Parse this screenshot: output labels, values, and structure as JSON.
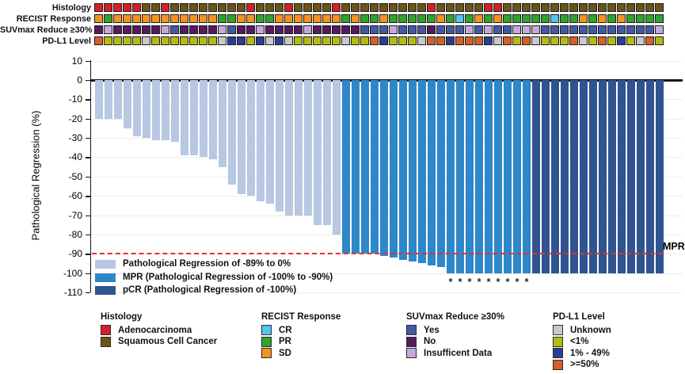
{
  "annotation_tracks": {
    "rows": [
      {
        "label": "Histology",
        "palette": {
          "A": "#d51f26",
          "S": "#6b5418"
        },
        "cells": [
          "A",
          "A",
          "A",
          "A",
          "A",
          "S",
          "S",
          "A",
          "S",
          "S",
          "S",
          "S",
          "S",
          "S",
          "S",
          "S",
          "A",
          "S",
          "S",
          "S",
          "A",
          "S",
          "S",
          "S",
          "S",
          "A",
          "S",
          "S",
          "S",
          "S",
          "S",
          "S",
          "S",
          "S",
          "S",
          "A",
          "S",
          "S",
          "S",
          "S",
          "S",
          "A",
          "A",
          "S",
          "S",
          "S",
          "S",
          "S",
          "S",
          "S",
          "S",
          "S",
          "S",
          "S",
          "S",
          "S",
          "S",
          "S",
          "S",
          "S"
        ]
      },
      {
        "label": "RECIST Response",
        "palette": {
          "CR": "#53c5ee",
          "PR": "#2fa32e",
          "SD": "#f6921e"
        },
        "cells": [
          "SD",
          "PR",
          "SD",
          "SD",
          "SD",
          "SD",
          "SD",
          "SD",
          "SD",
          "SD",
          "SD",
          "SD",
          "SD",
          "PR",
          "PR",
          "SD",
          "SD",
          "PR",
          "PR",
          "SD",
          "SD",
          "SD",
          "SD",
          "SD",
          "SD",
          "SD",
          "PR",
          "SD",
          "PR",
          "PR",
          "SD",
          "PR",
          "PR",
          "PR",
          "PR",
          "PR",
          "SD",
          "PR",
          "CR",
          "PR",
          "SD",
          "PR",
          "SD",
          "PR",
          "PR",
          "PR",
          "PR",
          "PR",
          "CR",
          "PR",
          "PR",
          "SD",
          "PR",
          "SD",
          "PR",
          "SD",
          "PR",
          "PR",
          "PR",
          "PR"
        ]
      },
      {
        "label": "SUVmax Reduce ≥30%",
        "palette": {
          "Y": "#4559a3",
          "N": "#561a5e",
          "ID": "#c5a9da"
        },
        "cells": [
          "N",
          "ID",
          "N",
          "N",
          "N",
          "N",
          "N",
          "ID",
          "Y",
          "N",
          "N",
          "N",
          "N",
          "ID",
          "Y",
          "N",
          "N",
          "ID",
          "N",
          "N",
          "N",
          "N",
          "ID",
          "N",
          "N",
          "N",
          "N",
          "N",
          "Y",
          "Y",
          "Y",
          "ID",
          "Y",
          "Y",
          "Y",
          "N",
          "Y",
          "Y",
          "Y",
          "ID",
          "Y",
          "ID",
          "Y",
          "Y",
          "ID",
          "ID",
          "ID",
          "Y",
          "Y",
          "Y",
          "Y",
          "Y",
          "Y",
          "Y",
          "Y",
          "Y",
          "Y",
          "Y",
          "Y",
          "ID"
        ]
      },
      {
        "label": "PD-L1 Level",
        "palette": {
          "U": "#c9c9c9",
          "L": "#b6ba14",
          "M": "#2b3d95",
          "H": "#d4602a"
        },
        "cells": [
          "H",
          "L",
          "L",
          "L",
          "L",
          "U",
          "L",
          "L",
          "L",
          "L",
          "L",
          "L",
          "L",
          "U",
          "M",
          "M",
          "L",
          "M",
          "U",
          "M",
          "U",
          "L",
          "L",
          "L",
          "L",
          "L",
          "U",
          "L",
          "L",
          "H",
          "M",
          "L",
          "L",
          "L",
          "U",
          "H",
          "H",
          "M",
          "H",
          "H",
          "H",
          "M",
          "U",
          "H",
          "L",
          "H",
          "U",
          "L",
          "L",
          "L",
          "H",
          "U",
          "L",
          "H",
          "L",
          "M",
          "L",
          "U",
          "H",
          "L"
        ]
      }
    ]
  },
  "chart_data": {
    "type": "bar",
    "subtype": "waterfall",
    "title": "",
    "ylabel": "Pathological Regression (%)",
    "ylim": [
      -110,
      10
    ],
    "yticks": [
      10,
      0,
      -10,
      -20,
      -30,
      -40,
      -50,
      -60,
      -70,
      -80,
      -90,
      -100,
      -110
    ],
    "grid": true,
    "values": [
      -20,
      -20,
      -20,
      -25,
      -29,
      -30,
      -31,
      -31,
      -32,
      -39,
      -39,
      -40,
      -41,
      -45,
      -54,
      -59,
      -60,
      -63,
      -64,
      -68,
      -70,
      -70,
      -70,
      -75,
      -75,
      -80,
      -90,
      -90,
      -90,
      -90,
      -91,
      -92,
      -93,
      -94,
      -95,
      -96,
      -97,
      -100,
      -100,
      -100,
      -100,
      -100,
      -100,
      -100,
      -100,
      -100,
      -100,
      -100,
      -100,
      -100,
      -100,
      -100,
      -100,
      -100,
      -100,
      -100,
      -100,
      -100,
      -100,
      -100
    ],
    "groups": [
      "reg",
      "reg",
      "reg",
      "reg",
      "reg",
      "reg",
      "reg",
      "reg",
      "reg",
      "reg",
      "reg",
      "reg",
      "reg",
      "reg",
      "reg",
      "reg",
      "reg",
      "reg",
      "reg",
      "reg",
      "reg",
      "reg",
      "reg",
      "reg",
      "reg",
      "reg",
      "mpr",
      "mpr",
      "mpr",
      "mpr",
      "mpr",
      "mpr",
      "mpr",
      "mpr",
      "mpr",
      "mpr",
      "mpr",
      "mpr",
      "mpr",
      "mpr",
      "mpr",
      "mpr",
      "mpr",
      "mpr",
      "mpr",
      "mpr",
      "pcr",
      "pcr",
      "pcr",
      "pcr",
      "pcr",
      "pcr",
      "pcr",
      "pcr",
      "pcr",
      "pcr",
      "pcr",
      "pcr",
      "pcr",
      "pcr"
    ],
    "group_colors": {
      "reg": "#b8c7e2",
      "mpr": "#2d87c9",
      "pcr": "#2f5490"
    },
    "reference_line": {
      "y": -90,
      "color": "#ee2f28",
      "style": "dashed",
      "label": "MPR"
    },
    "asterisk_marker": "*",
    "asterisk_columns": [
      38,
      39,
      40,
      41,
      42,
      43,
      44,
      45,
      46
    ],
    "legend": [
      {
        "group": "reg",
        "label": "Pathological Regression of -89% to 0%",
        "color": "#b8c7e2"
      },
      {
        "group": "mpr",
        "label": "MPR (Pathological Regression of -100% to -90%)",
        "color": "#2d87c9"
      },
      {
        "group": "pcr",
        "label": "pCR (Pathological Regression of -100%)",
        "color": "#2f5490"
      }
    ]
  },
  "bottom_legends": [
    {
      "title": "Histology",
      "items": [
        {
          "label": "Adenocarcinoma",
          "color": "#d51f26"
        },
        {
          "label": "Squamous Cell Cancer",
          "color": "#6b5418"
        }
      ]
    },
    {
      "title": "RECIST Response",
      "items": [
        {
          "label": "CR",
          "color": "#53c5ee"
        },
        {
          "label": "PR",
          "color": "#2fa32e"
        },
        {
          "label": "SD",
          "color": "#f6921e"
        }
      ]
    },
    {
      "title": "SUVmax Reduce ≥30%",
      "items": [
        {
          "label": "Yes",
          "color": "#4559a3"
        },
        {
          "label": "No",
          "color": "#561a5e"
        },
        {
          "label": "Insufficent Data",
          "color": "#c5a9da"
        }
      ]
    },
    {
      "title": "PD-L1 Level",
      "items": [
        {
          "label": "Unknown",
          "color": "#c9c9c9"
        },
        {
          "label": "<1%",
          "color": "#b6ba14"
        },
        {
          "label": "1% - 49%",
          "color": "#2b3d95"
        },
        {
          "label": ">=50%",
          "color": "#d4602a"
        }
      ]
    }
  ]
}
